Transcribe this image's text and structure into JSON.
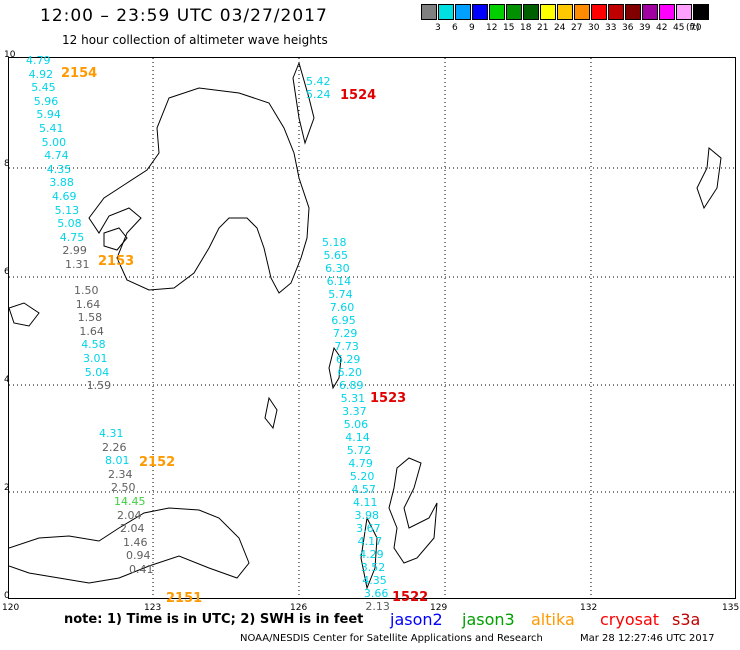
{
  "title": "12:00 – 23:59 UTC 03/27/2017",
  "subtitle": "12 hour collection of altimeter wave heights",
  "scale": {
    "unit_label": "(ft)",
    "swatches": [
      {
        "color": "#808080",
        "label": "3"
      },
      {
        "color": "#00e0e0",
        "label": "6"
      },
      {
        "color": "#00a0ff",
        "label": "9"
      },
      {
        "color": "#0000ff",
        "label": "12"
      },
      {
        "color": "#00d000",
        "label": "15"
      },
      {
        "color": "#009000",
        "label": "18"
      },
      {
        "color": "#006000",
        "label": "21"
      },
      {
        "color": "#ffff00",
        "label": "24"
      },
      {
        "color": "#ffc800",
        "label": "27"
      },
      {
        "color": "#ff8c00",
        "label": "30"
      },
      {
        "color": "#ff0000",
        "label": "33"
      },
      {
        "color": "#c00000",
        "label": "36"
      },
      {
        "color": "#800000",
        "label": "39"
      },
      {
        "color": "#a000a0",
        "label": "42"
      },
      {
        "color": "#ff00ff",
        "label": "45"
      },
      {
        "color": "#ffa0ff",
        "label": "70"
      },
      {
        "color": "#000000",
        "label": ""
      }
    ]
  },
  "axes": {
    "lat_labels": [
      "10",
      "8",
      "6",
      "4",
      "2",
      "0"
    ],
    "lon_labels": [
      "120",
      "123",
      "126",
      "129",
      "132",
      "135"
    ]
  },
  "colors": {
    "gray": "#606060",
    "cyan": "#00d4e8",
    "green": "#40d040",
    "orange": "#ff9900",
    "red": "#e00000",
    "blue": "#0000ff"
  },
  "tracks": {
    "left_a": [
      {
        "v": "4.79",
        "c": "cyan"
      },
      {
        "v": "4.92",
        "c": "cyan"
      },
      {
        "v": "5.45",
        "c": "cyan"
      },
      {
        "v": "5.96",
        "c": "cyan"
      },
      {
        "v": "5.94",
        "c": "cyan"
      },
      {
        "v": "5.41",
        "c": "cyan"
      },
      {
        "v": "5.00",
        "c": "cyan"
      },
      {
        "v": "4.74",
        "c": "cyan"
      },
      {
        "v": "4.35",
        "c": "cyan"
      },
      {
        "v": "3.88",
        "c": "cyan"
      },
      {
        "v": "4.69",
        "c": "cyan"
      },
      {
        "v": "5.13",
        "c": "cyan"
      },
      {
        "v": "5.08",
        "c": "cyan"
      },
      {
        "v": "4.75",
        "c": "cyan"
      },
      {
        "v": "2.99",
        "c": "gray"
      },
      {
        "v": "1.31",
        "c": "gray"
      }
    ],
    "left_b": [
      {
        "v": "1.50",
        "c": "gray"
      },
      {
        "v": "1.64",
        "c": "gray"
      },
      {
        "v": "1.58",
        "c": "gray"
      },
      {
        "v": "1.64",
        "c": "gray"
      },
      {
        "v": "4.58",
        "c": "cyan"
      },
      {
        "v": "3.01",
        "c": "cyan"
      },
      {
        "v": "5.04",
        "c": "cyan"
      },
      {
        "v": "1.59",
        "c": "gray"
      }
    ],
    "left_c": [
      {
        "v": "4.31",
        "c": "cyan"
      },
      {
        "v": "2.26",
        "c": "gray"
      },
      {
        "v": "8.01",
        "c": "cyan"
      },
      {
        "v": "2.34",
        "c": "gray"
      },
      {
        "v": "2.50",
        "c": "gray"
      },
      {
        "v": "14.45",
        "c": "green"
      },
      {
        "v": "2.04",
        "c": "gray"
      },
      {
        "v": "2.04",
        "c": "gray"
      },
      {
        "v": "1.46",
        "c": "gray"
      },
      {
        "v": "0.94",
        "c": "gray"
      },
      {
        "v": "0.41",
        "c": "gray"
      }
    ],
    "top_mid": [
      {
        "v": "5.42",
        "c": "cyan"
      },
      {
        "v": "5.24",
        "c": "cyan"
      }
    ],
    "right": [
      {
        "v": "5.18",
        "c": "cyan"
      },
      {
        "v": "5.65",
        "c": "cyan"
      },
      {
        "v": "6.30",
        "c": "cyan"
      },
      {
        "v": "6.14",
        "c": "cyan"
      },
      {
        "v": "5.74",
        "c": "cyan"
      },
      {
        "v": "7.60",
        "c": "cyan"
      },
      {
        "v": "6.95",
        "c": "cyan"
      },
      {
        "v": "7.29",
        "c": "cyan"
      },
      {
        "v": "7.73",
        "c": "cyan"
      },
      {
        "v": "6.29",
        "c": "cyan"
      },
      {
        "v": "6.20",
        "c": "cyan"
      },
      {
        "v": "6.89",
        "c": "cyan"
      },
      {
        "v": "5.31",
        "c": "cyan"
      },
      {
        "v": "3.37",
        "c": "cyan"
      },
      {
        "v": "5.06",
        "c": "cyan"
      },
      {
        "v": "4.14",
        "c": "cyan"
      },
      {
        "v": "5.72",
        "c": "cyan"
      },
      {
        "v": "4.79",
        "c": "cyan"
      },
      {
        "v": "5.20",
        "c": "cyan"
      },
      {
        "v": "4.57",
        "c": "cyan"
      },
      {
        "v": "4.11",
        "c": "cyan"
      },
      {
        "v": "3.98",
        "c": "cyan"
      },
      {
        "v": "3.67",
        "c": "cyan"
      },
      {
        "v": "4.17",
        "c": "cyan"
      },
      {
        "v": "4.29",
        "c": "cyan"
      },
      {
        "v": "3.52",
        "c": "cyan"
      },
      {
        "v": "4.35",
        "c": "cyan"
      },
      {
        "v": "3.66",
        "c": "cyan"
      },
      {
        "v": "2.13",
        "c": "gray"
      }
    ]
  },
  "passes": [
    {
      "id": "2154",
      "c": "orange"
    },
    {
      "id": "1524",
      "c": "red"
    },
    {
      "id": "2153",
      "c": "orange"
    },
    {
      "id": "1523",
      "c": "red"
    },
    {
      "id": "2152",
      "c": "orange"
    },
    {
      "id": "2151",
      "c": "orange"
    },
    {
      "id": "1522",
      "c": "red"
    }
  ],
  "footer": {
    "note": "note:  1) Time is in UTC;  2) SWH is in feet",
    "satellites": [
      {
        "name": "jason2",
        "color": "#0000ff"
      },
      {
        "name": "jason3",
        "color": "#00a000"
      },
      {
        "name": "altika",
        "color": "#ff9900"
      },
      {
        "name": "cryosat",
        "color": "#ff0000"
      },
      {
        "name": "s3a",
        "color": "#c00000"
      }
    ],
    "credit": "NOAA/NESDIS Center for Satellite Applications and Research",
    "timestamp": "Mar 28 12:27:46 UTC 2017"
  }
}
